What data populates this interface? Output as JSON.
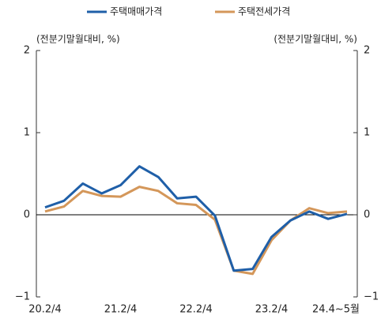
{
  "chart_data": {
    "type": "line",
    "categories": [
      "20.2/4",
      null,
      null,
      null,
      "21.2/4",
      null,
      null,
      null,
      "22.2/4",
      null,
      null,
      null,
      "23.2/4",
      null,
      null,
      null,
      "24.4~5월"
    ],
    "series": [
      {
        "name": "주택매매가격",
        "color": "#1f5fa8",
        "values": [
          0.09,
          0.17,
          0.38,
          0.26,
          0.36,
          0.59,
          0.46,
          0.2,
          0.22,
          -0.01,
          -0.68,
          -0.66,
          -0.27,
          -0.07,
          0.04,
          -0.05,
          0.01
        ]
      },
      {
        "name": "주택전세가격",
        "color": "#d4975a",
        "values": [
          0.04,
          0.1,
          0.29,
          0.23,
          0.22,
          0.34,
          0.29,
          0.14,
          0.12,
          -0.06,
          -0.68,
          -0.72,
          -0.31,
          -0.07,
          0.08,
          0.02,
          0.04
        ]
      }
    ],
    "ylabel": "(전분기말월대비, %)",
    "y2label": "(전분기말월대비, %)",
    "ylim": [
      -1,
      2
    ],
    "yticks": [
      {
        "value": -1,
        "label": "−1"
      },
      0,
      1,
      2
    ],
    "y2lim": [
      -1,
      2
    ],
    "y2ticks": [
      {
        "value": -1,
        "label": "−1"
      },
      0,
      1,
      2
    ],
    "legend": "top"
  }
}
